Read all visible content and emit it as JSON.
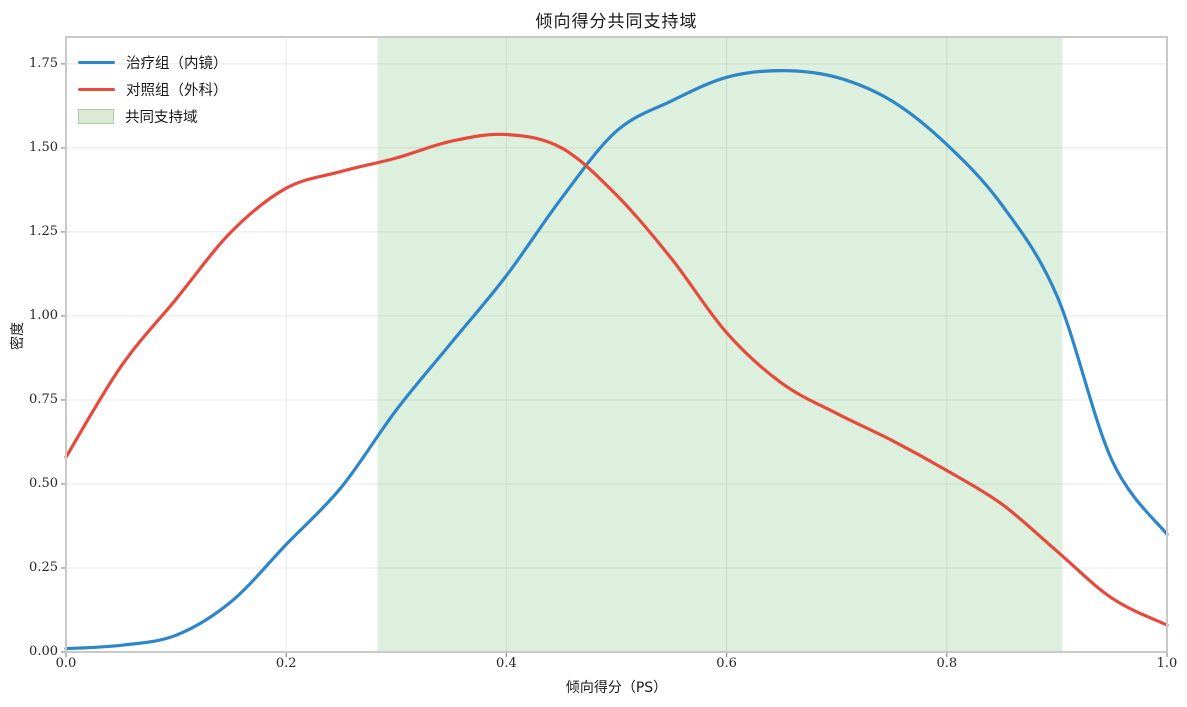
{
  "figure": {
    "title": "倾向得分共同支持域",
    "xlabel": "倾向得分（PS）",
    "ylabel": "密度"
  },
  "legend": {
    "position": "upper left",
    "items": [
      {
        "label": "治疗组（内镜）",
        "type": "line",
        "color": "#2E86C9"
      },
      {
        "label": "对照组（外科）",
        "type": "line",
        "color": "#E64A3C"
      },
      {
        "label": "共同支持域",
        "type": "patch",
        "fill": "#DCEBD7",
        "border": "#AECBA6"
      }
    ]
  },
  "chart_data": {
    "type": "line",
    "title": "倾向得分共同支持域",
    "xlabel": "倾向得分（PS）",
    "ylabel": "密度",
    "xlim": [
      0,
      1.0
    ],
    "ylim": [
      0,
      1.83
    ],
    "xticks": [
      "0.0",
      "0.2",
      "0.4",
      "0.6",
      "0.8",
      "1.0"
    ],
    "yticks": [
      "0.00",
      "0.25",
      "0.50",
      "0.75",
      "1.00",
      "1.25",
      "1.50",
      "1.75"
    ],
    "grid": true,
    "legend_position": "upper left",
    "x": [
      0.0,
      0.05,
      0.1,
      0.15,
      0.2,
      0.25,
      0.3,
      0.35,
      0.4,
      0.45,
      0.5,
      0.55,
      0.6,
      0.65,
      0.7,
      0.75,
      0.8,
      0.85,
      0.9,
      0.95,
      1.0
    ],
    "series": [
      {
        "name": "治疗组（内镜）",
        "color": "#2E86C9",
        "values": [
          0.01,
          0.02,
          0.05,
          0.15,
          0.32,
          0.49,
          0.72,
          0.92,
          1.12,
          1.35,
          1.55,
          1.64,
          1.71,
          1.73,
          1.71,
          1.64,
          1.51,
          1.33,
          1.06,
          0.57,
          0.35
        ]
      },
      {
        "name": "对照组（外科）",
        "color": "#E64A3C",
        "values": [
          0.58,
          0.85,
          1.05,
          1.25,
          1.38,
          1.43,
          1.47,
          1.52,
          1.54,
          1.5,
          1.36,
          1.17,
          0.95,
          0.8,
          0.71,
          0.63,
          0.54,
          0.44,
          0.3,
          0.16,
          0.08
        ]
      }
    ],
    "shaded_region": {
      "label": "共同支持域",
      "x_start": 0.283,
      "x_end": 0.905,
      "color": "#2ca02c",
      "alpha": 0.16
    },
    "style": {
      "grid_color": "#e8e8e8",
      "spine_color": "#c9c9c9",
      "tick_color": "#8c8c8c",
      "background": "#ffffff"
    }
  }
}
